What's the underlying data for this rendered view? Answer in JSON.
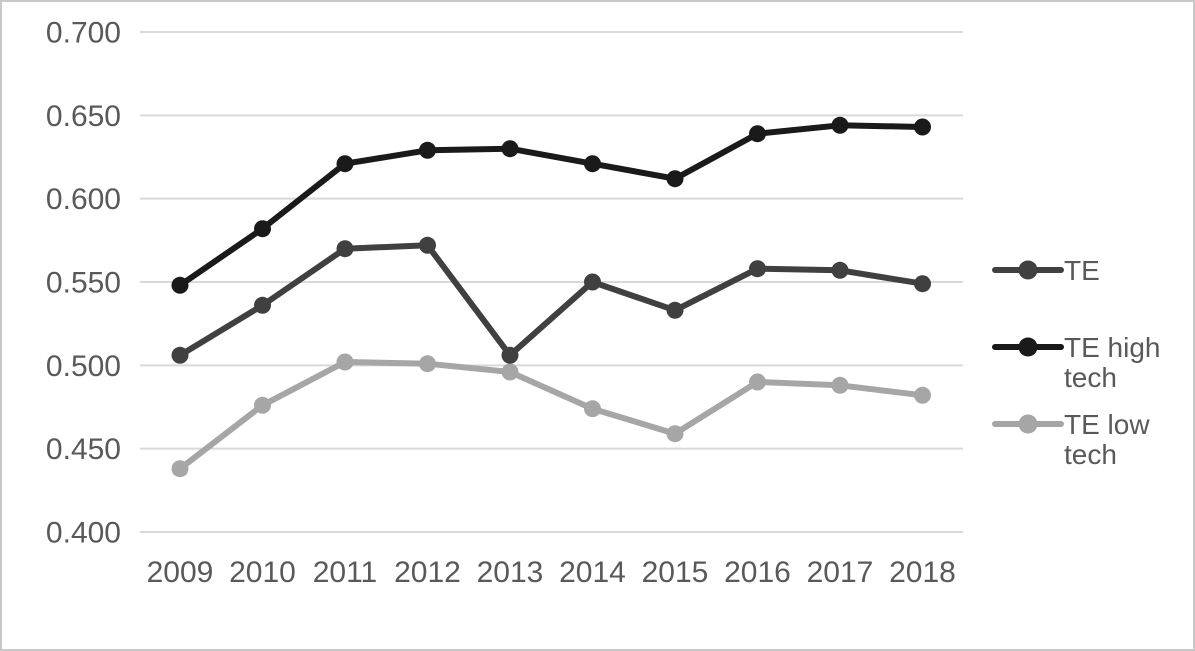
{
  "chart_data": {
    "type": "line",
    "categories": [
      "2009",
      "2010",
      "2011",
      "2012",
      "2013",
      "2014",
      "2015",
      "2016",
      "2017",
      "2018"
    ],
    "series": [
      {
        "name": "TE",
        "color": "#404040",
        "values": [
          0.506,
          0.536,
          0.57,
          0.572,
          0.506,
          0.55,
          0.533,
          0.558,
          0.557,
          0.549
        ]
      },
      {
        "name": "TE high tech",
        "color": "#1a1a1a",
        "values": [
          0.548,
          0.582,
          0.621,
          0.629,
          0.63,
          0.621,
          0.612,
          0.639,
          0.644,
          0.643
        ]
      },
      {
        "name": "TE low tech",
        "color": "#a6a6a6",
        "values": [
          0.438,
          0.476,
          0.502,
          0.501,
          0.496,
          0.474,
          0.459,
          0.49,
          0.488,
          0.482
        ]
      }
    ],
    "ylim": [
      0.4,
      0.7
    ],
    "ytick_step": 0.05,
    "ytick_labels": [
      "0.400",
      "0.450",
      "0.500",
      "0.550",
      "0.600",
      "0.650",
      "0.700"
    ],
    "xlabel": "",
    "ylabel": "",
    "grid": true,
    "legend_position": "right",
    "legend": [
      {
        "label": "TE"
      },
      {
        "label": "TE high tech"
      },
      {
        "label": "TE low tech"
      }
    ]
  },
  "styles": {
    "axis_text_color": "#595959",
    "legend_text_color": "#595959",
    "gridline_color": "#d9d9d9",
    "background_color": "#ffffff",
    "border_color": "#c8c8c8"
  }
}
